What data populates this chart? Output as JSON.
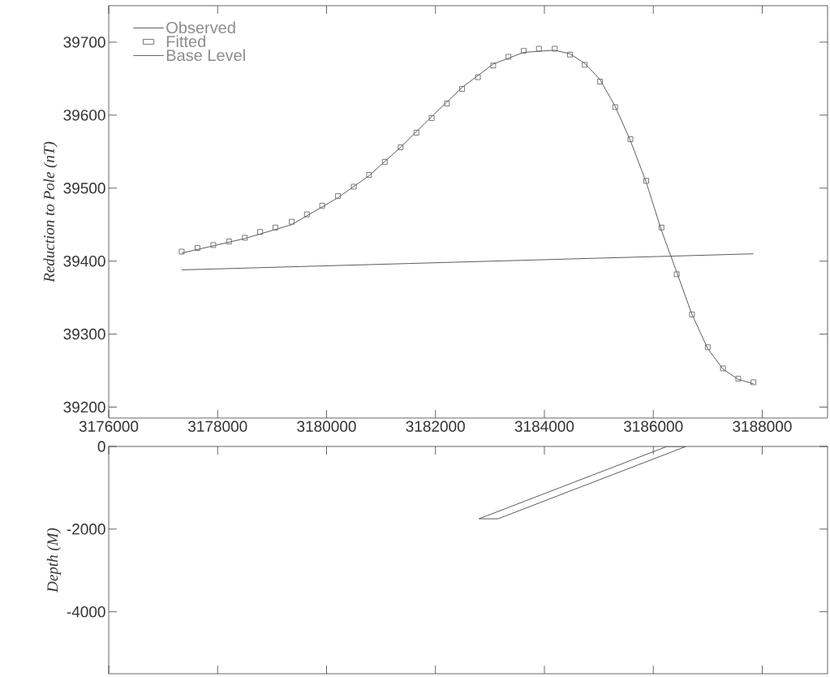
{
  "chart_data": [
    {
      "type": "line",
      "ylabel": "Reduction to Pole (nT)",
      "xlim": [
        3176000,
        3189200
      ],
      "ylim": [
        39185,
        39750
      ],
      "xticks": [
        3176000,
        3178000,
        3180000,
        3182000,
        3184000,
        3186000,
        3188000
      ],
      "yticks": [
        39200,
        39300,
        39400,
        39500,
        39600,
        39700
      ],
      "legend": "top left",
      "series": [
        {
          "name": "Observed",
          "color": "#4a4a4a",
          "x": [
            3177340,
            3178500,
            3179360,
            3180210,
            3180780,
            3181360,
            3181930,
            3182490,
            3183060,
            3183620,
            3184190,
            3184470,
            3184740,
            3185020,
            3185300,
            3185580,
            3185870,
            3186150,
            3186430,
            3186710,
            3187000,
            3187280,
            3187560,
            3187840
          ],
          "values": [
            39411,
            39431,
            39450,
            39487,
            39517,
            39556,
            39598,
            39638,
            39670,
            39686,
            39689,
            39684,
            39671,
            39649,
            39612,
            39565,
            39508,
            39442,
            39385,
            39327,
            39280,
            39252,
            39238,
            39232
          ]
        },
        {
          "name": "Fitted",
          "type": "scatter",
          "marker": "square",
          "color": "#6a6a6a",
          "x": [
            3177340,
            3177630,
            3177920,
            3178210,
            3178500,
            3178780,
            3179060,
            3179360,
            3179640,
            3179920,
            3180210,
            3180500,
            3180780,
            3181070,
            3181360,
            3181650,
            3181930,
            3182210,
            3182490,
            3182780,
            3183060,
            3183340,
            3183620,
            3183900,
            3184190,
            3184470,
            3184740,
            3185020,
            3185300,
            3185580,
            3185870,
            3186150,
            3186430,
            3186710,
            3187000,
            3187280,
            3187560,
            3187840
          ],
          "values": [
            39413,
            39418,
            39422,
            39427,
            39432,
            39440,
            39446,
            39454,
            39464,
            39476,
            39489,
            39502,
            39518,
            39536,
            39556,
            39576,
            39596,
            39616,
            39636,
            39652,
            39668,
            39680,
            39688,
            39691,
            39691,
            39683,
            39669,
            39646,
            39611,
            39567,
            39510,
            39446,
            39382,
            39327,
            39282,
            39253,
            39239,
            39234
          ]
        },
        {
          "name": "Base Level",
          "color": "#4a4a4a",
          "x": [
            3177340,
            3187840
          ],
          "values": [
            39388,
            39410
          ]
        }
      ]
    },
    {
      "type": "line",
      "ylabel": "Depth (M)",
      "xlim": [
        3176000,
        3189200
      ],
      "ylim": [
        -5500,
        0
      ],
      "xticks": [
        3176000,
        3178000,
        3180000,
        3182000,
        3184000,
        3186000,
        3188000
      ],
      "yticks": [
        -4000,
        -2000,
        0
      ],
      "tick_labels": "y",
      "series": [
        {
          "color": "#4a4a4a",
          "x": [
            3182800,
            3186250,
            3186600
          ],
          "values": [
            -1750,
            0,
            0
          ]
        },
        {
          "color": "#4a4a4a",
          "x": [
            3182800,
            3183150,
            3186600
          ],
          "values": [
            -1750,
            -1750,
            0
          ]
        }
      ]
    }
  ]
}
